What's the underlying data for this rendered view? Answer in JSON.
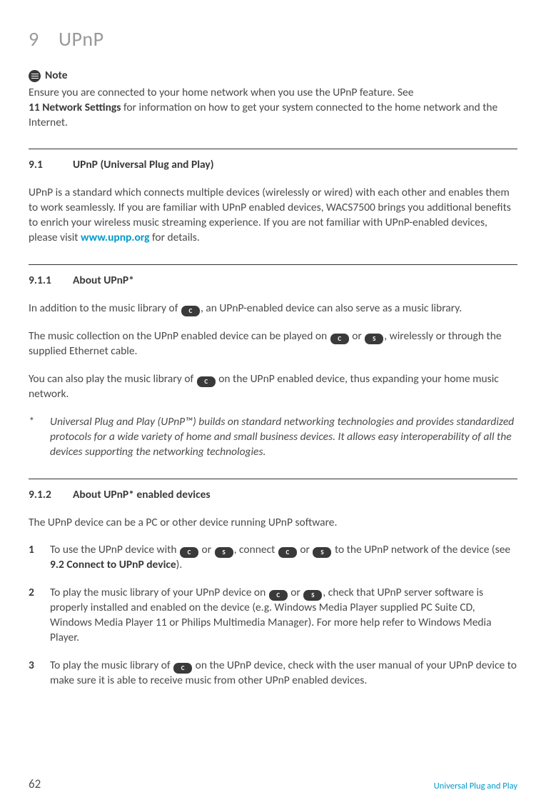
{
  "chapter": {
    "number": "9",
    "title": "UPnP"
  },
  "note": {
    "label": "Note",
    "line1": "Ensure you are connected to your home network when you use the UPnP feature. See",
    "boldRef": "11 Network Settings",
    "line2": " for information on how to get your system connected to the home network and the Internet."
  },
  "s91": {
    "num": "9.1",
    "title": "UPnP (Universal Plug and Play)",
    "p_a": "UPnP is a standard which connects multiple devices (wirelessly or wired) with each other and enables them to work seamlessly. If you are familiar with UPnP enabled devices, WACS7500 brings you additional benefits to enrich your wireless music streaming experience. If you are not familiar with UPnP-enabled devices, please visit ",
    "link": "www.upnp.org",
    "p_b": " for details."
  },
  "s911": {
    "num": "9.1.1",
    "title": "About UPnP*",
    "p1_a": "In addition to the music library of ",
    "p1_b": ", an UPnP-enabled device can also serve as a music library.",
    "p2_a": "The music collection on the UPnP enabled device can be played on ",
    "p2_b": " or ",
    "p2_c": ", wirelessly or through the supplied Ethernet cable.",
    "p3_a": "You can also play the music library of ",
    "p3_b": " on the UPnP enabled device, thus expanding your home music network.",
    "footnote_star": "*",
    "footnote": "Universal Plug and Play (UPnP™) builds on standard networking technologies and provides standardized protocols for a wide variety of home and small business devices. It allows easy interoperability of all the devices supporting the networking technologies."
  },
  "s912": {
    "num": "9.1.2",
    "title": "About UPnP* enabled devices",
    "intro": "The UPnP device can be a PC or other device running UPnP software.",
    "i1": {
      "n": "1",
      "a": "To use the UPnP device with ",
      "b": " or ",
      "c": ", connect ",
      "d": " or ",
      "e": " to the UPnP network of the device (see ",
      "bold": "9.2 Connect to UPnP device",
      "f": ")."
    },
    "i2": {
      "n": "2",
      "a": "To play the music library of your UPnP device on ",
      "b": " or ",
      "c": ", check that UPnP server software is properly installed and enabled on the device (e.g. Windows Media Player supplied PC Suite CD, Windows Media Player 11 or Philips Multimedia Manager). For more help refer to Windows Media Player."
    },
    "i3": {
      "n": "3",
      "a": "To play the music library of ",
      "b": " on the UPnP device, check with the user manual of your UPnP device to make sure it is able to receive music from other UPnP enabled devices."
    }
  },
  "badges": {
    "C": "C",
    "S": "S"
  },
  "footer": {
    "page": "62",
    "section": "Universal Plug and Play"
  }
}
